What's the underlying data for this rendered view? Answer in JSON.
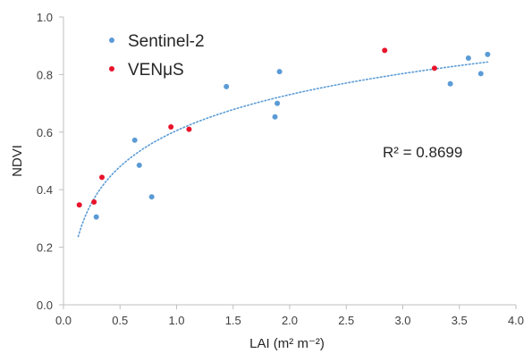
{
  "chart_data": {
    "type": "scatter",
    "xlabel": "LAI (m² m⁻²)",
    "ylabel": "NDVI",
    "xlim": [
      0,
      4.0
    ],
    "ylim": [
      0,
      1.0
    ],
    "x_ticks": [
      "0.0",
      "0.5",
      "1.0",
      "1.5",
      "2.0",
      "2.5",
      "3.0",
      "3.5",
      "4.0"
    ],
    "y_ticks": [
      "0.0",
      "0.2",
      "0.4",
      "0.6",
      "0.8",
      "1.0"
    ],
    "grid": false,
    "legend_position": "top-left",
    "series": [
      {
        "name": "Sentinel-2",
        "color": "#5B9BD5",
        "points": [
          {
            "x": 0.29,
            "y": 0.305
          },
          {
            "x": 0.63,
            "y": 0.572
          },
          {
            "x": 0.67,
            "y": 0.485
          },
          {
            "x": 0.78,
            "y": 0.375
          },
          {
            "x": 1.44,
            "y": 0.758
          },
          {
            "x": 1.87,
            "y": 0.653
          },
          {
            "x": 1.89,
            "y": 0.7
          },
          {
            "x": 1.91,
            "y": 0.81
          },
          {
            "x": 3.42,
            "y": 0.768
          },
          {
            "x": 3.58,
            "y": 0.857
          },
          {
            "x": 3.69,
            "y": 0.803
          },
          {
            "x": 3.75,
            "y": 0.87
          }
        ]
      },
      {
        "name": "VENμS",
        "color": "#E8142C",
        "points": [
          {
            "x": 0.14,
            "y": 0.347
          },
          {
            "x": 0.27,
            "y": 0.357
          },
          {
            "x": 0.34,
            "y": 0.443
          },
          {
            "x": 0.95,
            "y": 0.618
          },
          {
            "x": 1.11,
            "y": 0.61
          },
          {
            "x": 2.84,
            "y": 0.884
          },
          {
            "x": 3.28,
            "y": 0.822
          }
        ]
      }
    ],
    "trendline": {
      "type": "logarithmic",
      "style": "dotted",
      "color": "#5B9BD5",
      "x_from": 0.13,
      "x_to": 3.75,
      "r2_label": "R² = 0.8699"
    }
  }
}
